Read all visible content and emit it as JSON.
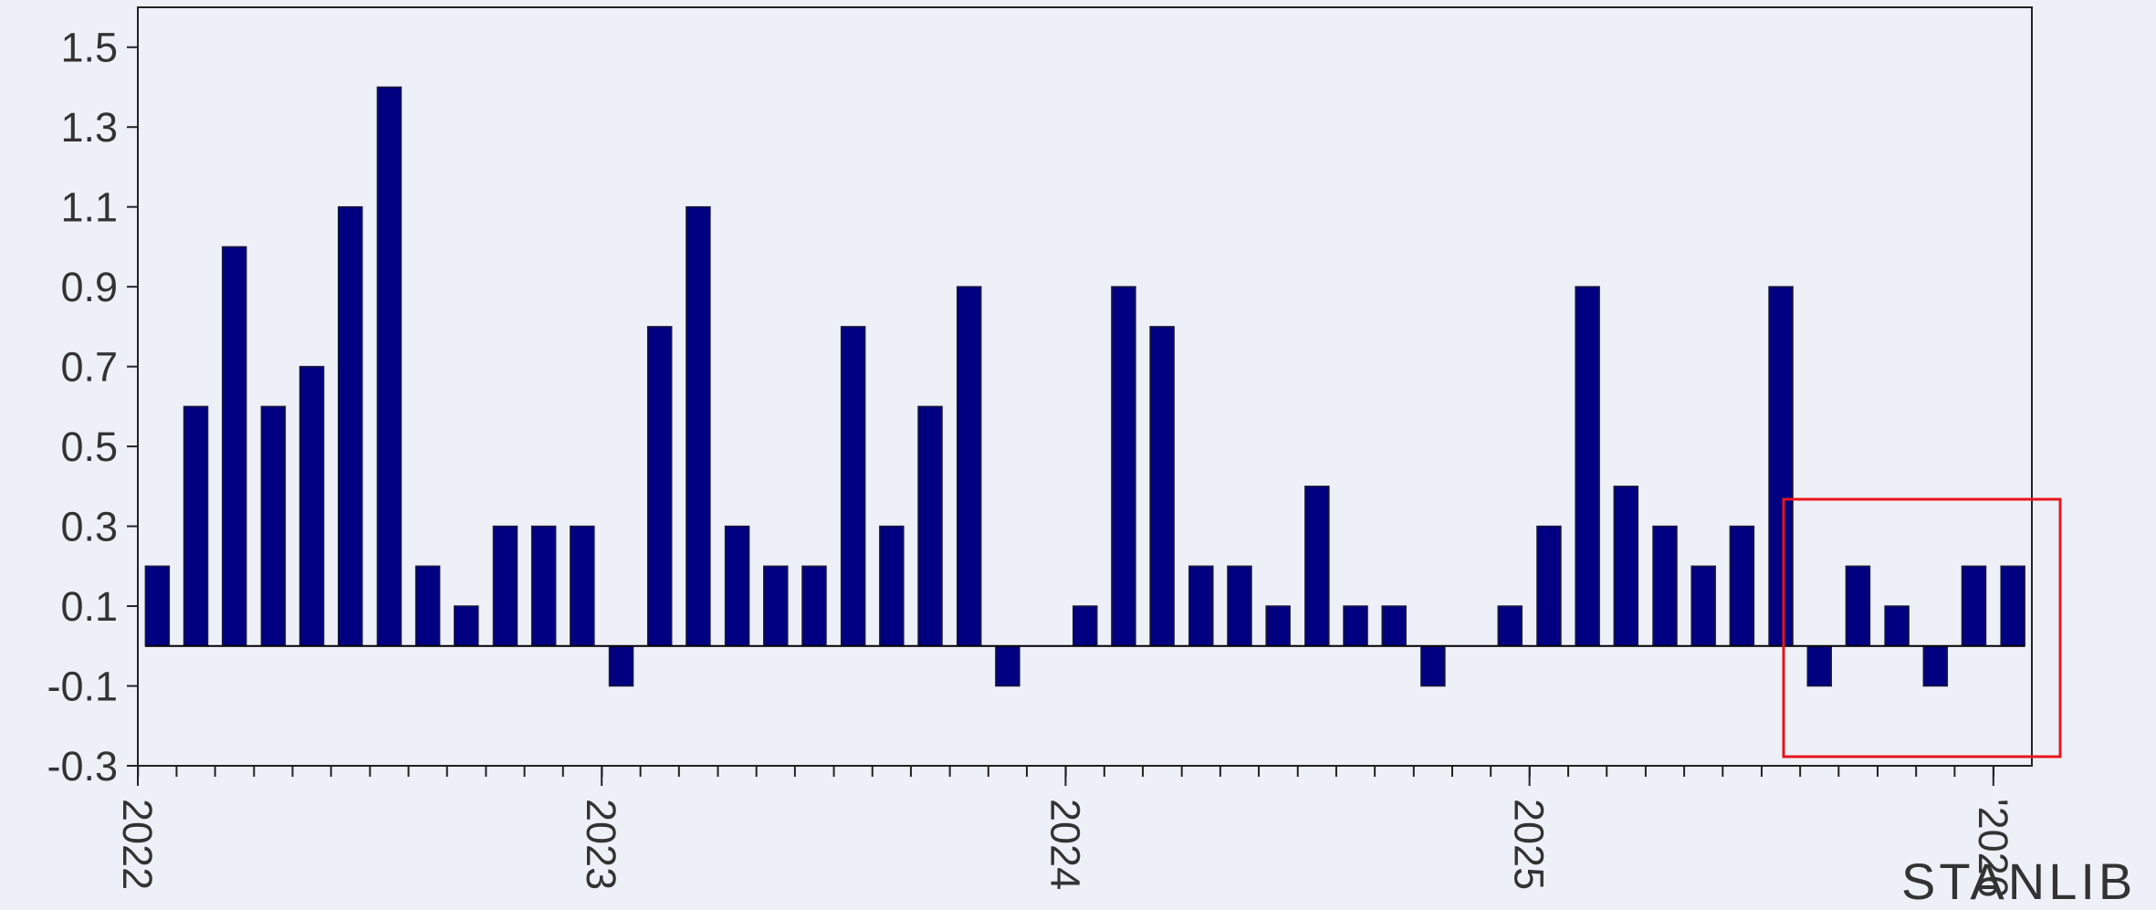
{
  "chart_data": {
    "type": "bar",
    "x": [
      2022.042,
      2022.125,
      2022.208,
      2022.292,
      2022.375,
      2022.458,
      2022.542,
      2022.625,
      2022.708,
      2022.792,
      2022.875,
      2022.958,
      2023.042,
      2023.125,
      2023.208,
      2023.292,
      2023.375,
      2023.458,
      2023.542,
      2023.625,
      2023.708,
      2023.792,
      2023.875,
      2023.958,
      2024.042,
      2024.125,
      2024.208,
      2024.292,
      2024.375,
      2024.458,
      2024.542,
      2024.625,
      2024.708,
      2024.792,
      2024.875,
      2024.958,
      2025.042,
      2025.125,
      2025.208,
      2025.292,
      2025.375,
      2025.458,
      2025.542,
      2025.625,
      2025.708,
      2025.792,
      2025.875,
      2025.958,
      2026.042
    ],
    "values": [
      0.2,
      0.6,
      1.0,
      0.6,
      0.7,
      1.1,
      1.4,
      0.2,
      0.1,
      0.3,
      0.3,
      0.3,
      -0.1,
      0.8,
      1.1,
      0.3,
      0.2,
      0.2,
      0.8,
      0.3,
      0.6,
      0.9,
      -0.1,
      0,
      0.1,
      0.9,
      0.8,
      0.2,
      0.2,
      0.1,
      0.4,
      0.1,
      0.1,
      -0.1,
      0,
      0.1,
      0.3,
      0.9,
      0.4,
      0.3,
      0.2,
      0.3,
      0.9,
      -0.1,
      0.2,
      0.1,
      -0.1,
      0.2,
      0.2
    ],
    "color": "#000080",
    "xlim": [
      2022,
      2026.083
    ],
    "xticks": [
      2022,
      2023,
      2024,
      2025,
      {
        "value": 2026,
        "label": "'2026"
      }
    ],
    "ylim": [
      -0.3,
      1.6
    ],
    "yticks": [
      -0.3,
      -0.1,
      0.1,
      0.3,
      0.5,
      0.7,
      0.9,
      1.1,
      1.3,
      1.5
    ],
    "grid": false
  },
  "logo": "STANLIB"
}
